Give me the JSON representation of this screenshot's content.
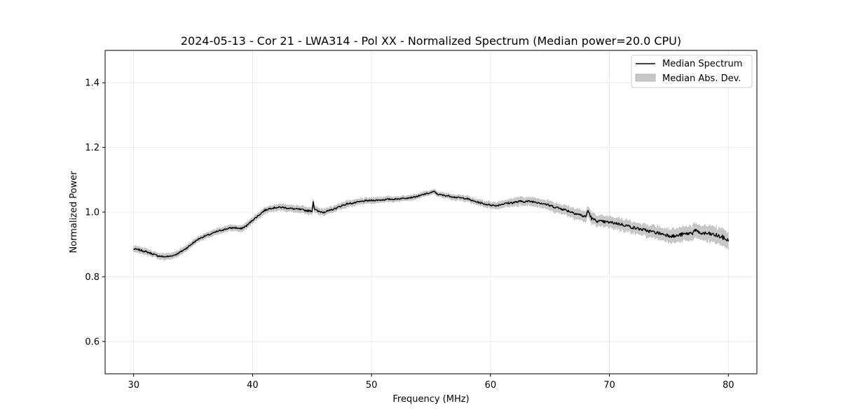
{
  "chart_data": {
    "type": "line",
    "title": "2024-05-13 - Cor 21 - LWA314 - Pol XX - Normalized Spectrum (Median power=20.0 CPU)",
    "xlabel": "Frequency (MHz)",
    "ylabel": "Normalized Power",
    "xlim": [
      27.6,
      82.4
    ],
    "ylim": [
      0.5,
      1.5
    ],
    "xticks": [
      30,
      40,
      50,
      60,
      70,
      80
    ],
    "yticks": [
      0.6,
      0.8,
      1.0,
      1.2,
      1.4
    ],
    "xtick_labels": [
      "30",
      "40",
      "50",
      "60",
      "70",
      "80"
    ],
    "ytick_labels": [
      "0.6",
      "0.8",
      "1.0",
      "1.2",
      "1.4"
    ],
    "grid": true,
    "legend_position": "top-right",
    "legend": {
      "median_label": "Median Spectrum",
      "mad_label": "Median Abs. Dev."
    },
    "colors": {
      "line": "#000000",
      "band": "#c8c8c8",
      "grid": "#e6e6e6"
    },
    "series": [
      {
        "name": "Median Spectrum",
        "x": [
          30,
          30.5,
          31,
          31.5,
          32,
          32.5,
          33,
          33.5,
          34,
          34.5,
          35,
          35.5,
          36,
          36.5,
          37,
          37.5,
          38,
          38.5,
          39,
          39.5,
          40,
          40.5,
          41,
          41.5,
          42,
          42.5,
          43,
          43.5,
          44,
          44.5,
          45,
          45.1,
          45.2,
          45.5,
          46,
          46.5,
          47,
          47.5,
          48,
          48.5,
          49,
          49.5,
          50,
          50.5,
          51,
          51.5,
          52,
          52.5,
          53,
          53.5,
          54,
          54.5,
          55,
          55.3,
          55.5,
          56,
          56.5,
          57,
          57.5,
          58,
          58.5,
          59,
          59.5,
          60,
          60.5,
          61,
          61.5,
          62,
          62.5,
          63,
          63.5,
          64,
          64.5,
          65,
          65.5,
          66,
          66.5,
          67,
          67.5,
          68,
          68.2,
          68.5,
          69,
          69.5,
          70,
          70.5,
          71,
          71.5,
          72,
          72.5,
          73,
          73.5,
          74,
          74.5,
          75,
          75.5,
          76,
          76.5,
          77,
          77.2,
          77.5,
          78,
          78.5,
          79,
          79.5,
          80
        ],
        "values": [
          0.886,
          0.883,
          0.878,
          0.872,
          0.865,
          0.862,
          0.863,
          0.868,
          0.878,
          0.89,
          0.905,
          0.918,
          0.926,
          0.932,
          0.94,
          0.945,
          0.95,
          0.952,
          0.948,
          0.958,
          0.975,
          0.99,
          1.005,
          1.012,
          1.014,
          1.015,
          1.012,
          1.01,
          1.008,
          1.005,
          1.003,
          1.032,
          1.01,
          1.002,
          1.0,
          1.005,
          1.012,
          1.02,
          1.026,
          1.028,
          1.032,
          1.035,
          1.036,
          1.037,
          1.038,
          1.04,
          1.04,
          1.042,
          1.044,
          1.046,
          1.05,
          1.056,
          1.06,
          1.064,
          1.056,
          1.052,
          1.05,
          1.046,
          1.044,
          1.042,
          1.035,
          1.03,
          1.025,
          1.022,
          1.02,
          1.025,
          1.028,
          1.03,
          1.033,
          1.033,
          1.033,
          1.03,
          1.026,
          1.02,
          1.015,
          1.01,
          1.004,
          0.998,
          0.992,
          0.985,
          1.005,
          0.98,
          0.972,
          0.97,
          0.968,
          0.966,
          0.962,
          0.958,
          0.952,
          0.948,
          0.944,
          0.94,
          0.936,
          0.932,
          0.928,
          0.925,
          0.93,
          0.933,
          0.936,
          0.946,
          0.935,
          0.934,
          0.932,
          0.928,
          0.922,
          0.912
        ]
      },
      {
        "name": "Median Abs. Dev.",
        "x": [
          30,
          32,
          35,
          40,
          45,
          50,
          55,
          60,
          62,
          64,
          66,
          68,
          70,
          72,
          74,
          76,
          78,
          80
        ],
        "values": [
          0.009,
          0.009,
          0.008,
          0.009,
          0.01,
          0.008,
          0.007,
          0.009,
          0.012,
          0.012,
          0.014,
          0.015,
          0.016,
          0.017,
          0.018,
          0.02,
          0.022,
          0.025
        ]
      }
    ]
  }
}
